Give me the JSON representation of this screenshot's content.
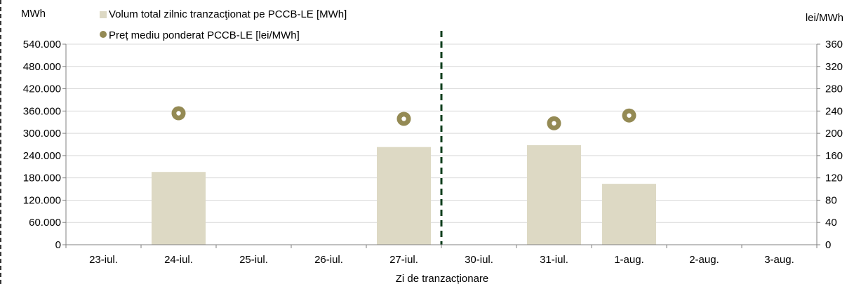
{
  "chart_data": {
    "type": "bar",
    "categories": [
      "23-iul.",
      "24-iul.",
      "25-iul.",
      "26-iul.",
      "27-iul.",
      "30-iul.",
      "31-iul.",
      "1-aug.",
      "2-aug.",
      "3-aug."
    ],
    "series": [
      {
        "name": "Volum total zilnic tranzacţionat pe PCCB-LE [MWh]",
        "type": "bar",
        "axis": "left",
        "values": [
          null,
          196000,
          null,
          null,
          263000,
          null,
          268000,
          164000,
          null,
          null
        ]
      },
      {
        "name": "Preț mediu ponderat PCCB-LE [lei/MWh]",
        "type": "scatter",
        "axis": "right",
        "values": [
          null,
          236,
          null,
          null,
          226,
          null,
          218,
          232,
          null,
          null
        ]
      }
    ],
    "y_left": {
      "unit": "MWh",
      "lim": [
        0,
        540000
      ],
      "ticks": [
        "0",
        "60.000",
        "120.000",
        "180.000",
        "240.000",
        "300.000",
        "360.000",
        "420.000",
        "480.000",
        "540.000"
      ]
    },
    "y_right": {
      "unit": "lei/MWh",
      "lim": [
        0,
        360
      ],
      "ticks": [
        "0",
        "40",
        "80",
        "120",
        "160",
        "200",
        "240",
        "280",
        "320",
        "360"
      ]
    },
    "xlabel": "Zi de tranzacționare",
    "grid": true,
    "legend_position": "top-left",
    "divider_after_category": "27-iul.",
    "colors": {
      "bar": "#ddd9c4",
      "marker": "#948a54",
      "marker_center": "#ffffff",
      "divider": "#0b3d1b",
      "grid": "#d9d9d9",
      "axis": "#808080"
    }
  }
}
